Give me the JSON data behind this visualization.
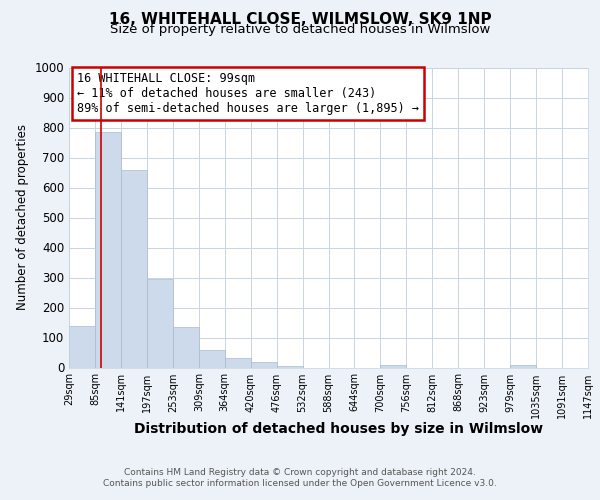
{
  "title": "16, WHITEHALL CLOSE, WILMSLOW, SK9 1NP",
  "subtitle": "Size of property relative to detached houses in Wilmslow",
  "xlabel": "Distribution of detached houses by size in Wilmslow",
  "ylabel": "Number of detached properties",
  "bin_edges": [
    29,
    85,
    141,
    197,
    253,
    309,
    364,
    420,
    476,
    532,
    588,
    644,
    700,
    756,
    812,
    868,
    923,
    979,
    1035,
    1091,
    1147
  ],
  "bar_heights": [
    140,
    785,
    660,
    295,
    135,
    57,
    32,
    18,
    5,
    0,
    0,
    0,
    10,
    0,
    0,
    0,
    0,
    7,
    0,
    0
  ],
  "bar_color": "#ccdaeb",
  "bar_edgecolor": "#aabbcc",
  "property_line_x": 99,
  "property_line_color": "#cc0000",
  "annotation_text": "16 WHITEHALL CLOSE: 99sqm\n← 11% of detached houses are smaller (243)\n89% of semi-detached houses are larger (1,895) →",
  "annotation_box_color": "#cc0000",
  "annotation_fontsize": 8.5,
  "xlim_min": 29,
  "xlim_max": 1147,
  "ylim_min": 0,
  "ylim_max": 1000,
  "yticks": [
    0,
    100,
    200,
    300,
    400,
    500,
    600,
    700,
    800,
    900,
    1000
  ],
  "footer_text": "Contains HM Land Registry data © Crown copyright and database right 2024.\nContains public sector information licensed under the Open Government Licence v3.0.",
  "background_color": "#edf2f8",
  "plot_background_color": "#ffffff",
  "title_fontsize": 11,
  "subtitle_fontsize": 9.5
}
